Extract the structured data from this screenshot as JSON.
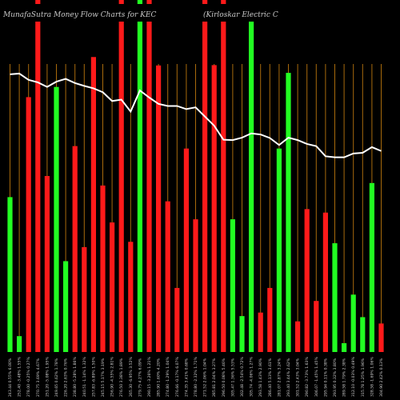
{
  "chart_data": {
    "type": "bar",
    "title_left": "MunafaSutra  Money Flow  Charts for KEC",
    "title_right": "(Kirloskar Electric C",
    "categories": [
      "243.44 0.55% 6.00%",
      "252.40 -3.48% 1.55%",
      "278.00 -0.25% 0.27%",
      "270.75 3.69% 4.67%",
      "251.20 -5.08% 1.95%",
      "249.65 0.62% 1.78%",
      "226.20 2.63% 0.76%",
      "238.80 -5.28% 1.86%",
      "240.51 -1.14% 1.32%",
      "257.83 -6.89% 1.50%",
      "245.15 5.17% 3.19%",
      "256.90 -4.55% 2.81%",
      "276.50 3.38% 1.89%",
      "265.30 -6.95% 3.52%",
      "279.75 4.27% 6.09%",
      "290.15 -3.26% 1.21%",
      "285.90 1.60% 4.20%",
      "274.80 -1.29% 1.04%",
      "276.66 -0.17% 6.07%",
      "274.35 3.41% 0.68%",
      "278.80 -2.32% 1.71%",
      "271.52 2.06% 1.04%",
      "285.81 2.04% 3.27%",
      "296.50 0.08% 5.46%",
      "305.47 1.36% 5.53%",
      "302.48 -2.54% 0.72%",
      "305.74 -4.06% 1.27%",
      "293.58 1.43% 2.90%",
      "286.40 5.13% 3.61%",
      "281.07 2.87% 3.24%",
      "293.40 3.44% 2.62%",
      "301.52 2.43% 3.04%",
      "290.82 -3.73% 1.63%",
      "306.07 -1.45% 1.45%",
      "295.94 0.11% 0.38%",
      "293.95 0.32% 3.80%",
      "289.58 1.79% 2.38%",
      "312.10 -0.03% 0.49%",
      "315.78 1.25% 1.96%",
      "328.58 -1.69% 1.06%",
      "304.90 2.42% 0.13%"
    ],
    "bar_colors": [
      "green",
      "green",
      "red",
      "red",
      "red",
      "green",
      "green",
      "red",
      "red",
      "red",
      "red",
      "red",
      "red",
      "red",
      "green",
      "red",
      "red",
      "red",
      "red",
      "red",
      "red",
      "red",
      "red",
      "red",
      "green",
      "green",
      "green",
      "red",
      "red",
      "green",
      "green",
      "red",
      "red",
      "red",
      "red",
      "green",
      "green",
      "green",
      "green",
      "green",
      "red"
    ],
    "bar_heights_pct": [
      44,
      4.5,
      72.4,
      100,
      50,
      75.3,
      25.8,
      58.5,
      29.8,
      83.8,
      47.3,
      36.8,
      100,
      31.3,
      100,
      100,
      81.4,
      42.8,
      18.2,
      57.8,
      37.7,
      100,
      81.5,
      100,
      37.7,
      10.2,
      94.5,
      11.2,
      18.2,
      57.8,
      79.3,
      8.7,
      40.6,
      14.5,
      39.6,
      30.9,
      2.5,
      16.3,
      9.9,
      48,
      8.1
    ],
    "flow_line": [
      78.9,
      79.1,
      77.3,
      76.6,
      75.3,
      76.8,
      77.6,
      76.4,
      75.6,
      74.9,
      73.8,
      71.3,
      71.7,
      68.3,
      74.3,
      72.3,
      70.5,
      69.9,
      69.9,
      69.0,
      69.5,
      66.9,
      64.3,
      60.3,
      60.2,
      60.9,
      62.1,
      61.8,
      60.8,
      58.8,
      60.9,
      60.2,
      59.1,
      58.5,
      55.6,
      55.3,
      55.3,
      56.4,
      56.6,
      58.2,
      57.1
    ],
    "ylim": [
      0,
      100
    ]
  }
}
